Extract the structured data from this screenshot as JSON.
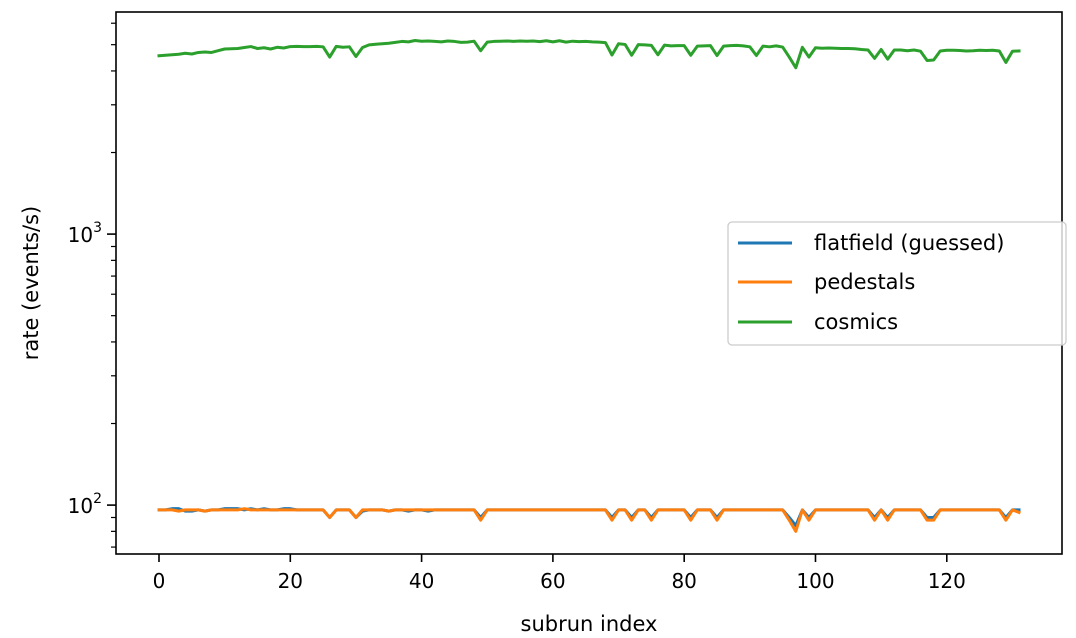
{
  "chart_data": {
    "type": "line",
    "title": "",
    "xlabel": "subrun index",
    "ylabel": "rate (events/s)",
    "yscale": "log",
    "xlim": [
      -6.55,
      137.55
    ],
    "ylim": [
      66,
      6600
    ],
    "xticks": [
      0,
      20,
      40,
      60,
      80,
      100,
      120
    ],
    "yticks_major": [
      {
        "value": 100,
        "base": "10",
        "exp": "2"
      },
      {
        "value": 1000,
        "base": "10",
        "exp": "3"
      }
    ],
    "yticks_minor": [
      70,
      80,
      90,
      200,
      300,
      400,
      500,
      600,
      700,
      800,
      900,
      2000,
      3000,
      4000,
      5000,
      6000
    ],
    "grid": false,
    "legend_position": "center-right",
    "series": [
      {
        "name": "flatfield (guessed)",
        "color": "#1f77b4",
        "x": [
          0,
          1,
          2,
          3,
          4,
          5,
          6,
          7,
          8,
          9,
          10,
          11,
          12,
          13,
          14,
          15,
          16,
          17,
          18,
          19,
          20,
          21,
          22,
          23,
          24,
          25,
          26,
          27,
          28,
          29,
          30,
          31,
          32,
          33,
          34,
          35,
          36,
          37,
          38,
          39,
          40,
          41,
          42,
          43,
          44,
          45,
          46,
          47,
          48,
          49,
          50,
          51,
          52,
          53,
          54,
          55,
          56,
          57,
          58,
          59,
          60,
          61,
          62,
          63,
          64,
          65,
          66,
          67,
          68,
          69,
          70,
          71,
          72,
          73,
          74,
          75,
          76,
          77,
          78,
          79,
          80,
          81,
          82,
          83,
          84,
          85,
          86,
          87,
          88,
          89,
          90,
          91,
          92,
          93,
          94,
          95,
          96,
          97,
          98,
          99,
          100,
          101,
          102,
          103,
          104,
          105,
          106,
          107,
          108,
          109,
          110,
          111,
          112,
          113,
          114,
          115,
          116,
          117,
          118,
          119,
          120,
          121,
          122,
          123,
          124,
          125,
          126,
          127,
          128,
          129,
          130,
          131
        ],
        "y": [
          96,
          96,
          97,
          97,
          95,
          95,
          96,
          95,
          96,
          96,
          97,
          97,
          97,
          96,
          97,
          96,
          97,
          96,
          96,
          97,
          97,
          96,
          96,
          96,
          96,
          96,
          90,
          96,
          96,
          96,
          90,
          95,
          96,
          96,
          96,
          95,
          96,
          96,
          95,
          96,
          96,
          95,
          96,
          96,
          96,
          96,
          96,
          96,
          96,
          90,
          96,
          96,
          96,
          96,
          96,
          96,
          96,
          96,
          96,
          96,
          96,
          96,
          96,
          96,
          96,
          96,
          96,
          96,
          96,
          90,
          96,
          96,
          90,
          96,
          96,
          90,
          96,
          96,
          96,
          96,
          96,
          90,
          96,
          96,
          96,
          90,
          96,
          96,
          96,
          96,
          96,
          96,
          96,
          96,
          96,
          96,
          90,
          84,
          96,
          90,
          96,
          96,
          96,
          96,
          96,
          96,
          96,
          96,
          96,
          90,
          96,
          90,
          96,
          96,
          96,
          96,
          96,
          90,
          90,
          96,
          96,
          96,
          96,
          96,
          96,
          96,
          96,
          96,
          96,
          90,
          96,
          96
        ]
      },
      {
        "name": "pedestals",
        "color": "#ff7f0e",
        "x": [
          0,
          1,
          2,
          3,
          4,
          5,
          6,
          7,
          8,
          9,
          10,
          11,
          12,
          13,
          14,
          15,
          16,
          17,
          18,
          19,
          20,
          21,
          22,
          23,
          24,
          25,
          26,
          27,
          28,
          29,
          30,
          31,
          32,
          33,
          34,
          35,
          36,
          37,
          38,
          39,
          40,
          41,
          42,
          43,
          44,
          45,
          46,
          47,
          48,
          49,
          50,
          51,
          52,
          53,
          54,
          55,
          56,
          57,
          58,
          59,
          60,
          61,
          62,
          63,
          64,
          65,
          66,
          67,
          68,
          69,
          70,
          71,
          72,
          73,
          74,
          75,
          76,
          77,
          78,
          79,
          80,
          81,
          82,
          83,
          84,
          85,
          86,
          87,
          88,
          89,
          90,
          91,
          92,
          93,
          94,
          95,
          96,
          97,
          98,
          99,
          100,
          101,
          102,
          103,
          104,
          105,
          106,
          107,
          108,
          109,
          110,
          111,
          112,
          113,
          114,
          115,
          116,
          117,
          118,
          119,
          120,
          121,
          122,
          123,
          124,
          125,
          126,
          127,
          128,
          129,
          130,
          131
        ],
        "y": [
          96,
          96,
          96,
          95,
          96,
          96,
          96,
          95,
          96,
          96,
          96,
          96,
          96,
          97,
          96,
          96,
          96,
          96,
          96,
          96,
          96,
          96,
          96,
          96,
          96,
          96,
          90,
          96,
          96,
          96,
          90,
          96,
          96,
          96,
          96,
          95,
          96,
          96,
          96,
          96,
          96,
          96,
          96,
          96,
          96,
          96,
          96,
          96,
          96,
          88,
          96,
          96,
          96,
          96,
          96,
          96,
          96,
          96,
          96,
          96,
          96,
          96,
          96,
          96,
          96,
          96,
          96,
          96,
          96,
          88,
          96,
          96,
          88,
          96,
          96,
          88,
          96,
          96,
          96,
          96,
          96,
          88,
          96,
          96,
          96,
          88,
          96,
          96,
          96,
          96,
          96,
          96,
          96,
          96,
          96,
          96,
          88,
          80,
          96,
          88,
          96,
          96,
          96,
          96,
          96,
          96,
          96,
          96,
          96,
          88,
          96,
          88,
          96,
          96,
          96,
          96,
          96,
          88,
          88,
          96,
          96,
          96,
          96,
          96,
          96,
          96,
          96,
          96,
          96,
          88,
          96,
          94
        ]
      },
      {
        "name": "cosmics",
        "color": "#2ca02c",
        "x": [
          0,
          1,
          2,
          3,
          4,
          5,
          6,
          7,
          8,
          9,
          10,
          11,
          12,
          13,
          14,
          15,
          16,
          17,
          18,
          19,
          20,
          21,
          22,
          23,
          24,
          25,
          26,
          27,
          28,
          29,
          30,
          31,
          32,
          33,
          34,
          35,
          36,
          37,
          38,
          39,
          40,
          41,
          42,
          43,
          44,
          45,
          46,
          47,
          48,
          49,
          50,
          51,
          52,
          53,
          54,
          55,
          56,
          57,
          58,
          59,
          60,
          61,
          62,
          63,
          64,
          65,
          66,
          67,
          68,
          69,
          70,
          71,
          72,
          73,
          74,
          75,
          76,
          77,
          78,
          79,
          80,
          81,
          82,
          83,
          84,
          85,
          86,
          87,
          88,
          89,
          90,
          91,
          92,
          93,
          94,
          95,
          96,
          97,
          98,
          99,
          100,
          101,
          102,
          103,
          104,
          105,
          106,
          107,
          108,
          109,
          110,
          111,
          112,
          113,
          114,
          115,
          116,
          117,
          118,
          119,
          120,
          121,
          122,
          123,
          124,
          125,
          126,
          127,
          128,
          129,
          130,
          131
        ],
        "y": [
          4550,
          4570,
          4590,
          4610,
          4650,
          4620,
          4680,
          4700,
          4680,
          4750,
          4820,
          4830,
          4840,
          4880,
          4920,
          4840,
          4870,
          4820,
          4890,
          4860,
          4920,
          4930,
          4920,
          4920,
          4930,
          4910,
          4500,
          4930,
          4890,
          4910,
          4520,
          4880,
          4990,
          5020,
          5040,
          5060,
          5100,
          5140,
          5120,
          5180,
          5150,
          5160,
          5140,
          5120,
          5160,
          5140,
          5100,
          5110,
          5150,
          4750,
          5110,
          5140,
          5150,
          5160,
          5140,
          5160,
          5150,
          5160,
          5130,
          5170,
          5120,
          5170,
          5110,
          5150,
          5130,
          5140,
          5120,
          5110,
          5090,
          4580,
          5040,
          5010,
          4570,
          5000,
          4990,
          4970,
          4590,
          4980,
          4950,
          4960,
          4960,
          4570,
          4940,
          4950,
          4960,
          4560,
          4940,
          4960,
          4970,
          4950,
          4910,
          4560,
          4940,
          4910,
          4950,
          4900,
          4500,
          4110,
          4890,
          4500,
          4870,
          4850,
          4860,
          4850,
          4840,
          4840,
          4830,
          4800,
          4780,
          4450,
          4800,
          4420,
          4780,
          4780,
          4750,
          4780,
          4730,
          4370,
          4390,
          4740,
          4770,
          4770,
          4760,
          4740,
          4750,
          4770,
          4760,
          4770,
          4740,
          4300,
          4730,
          4740
        ]
      }
    ]
  }
}
